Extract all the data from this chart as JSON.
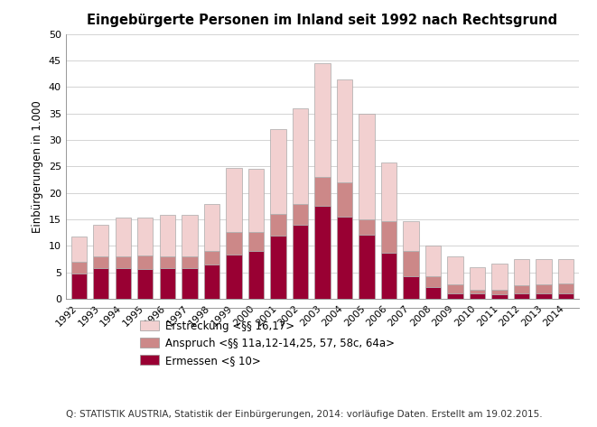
{
  "title": "Eingebürgerte Personen im Inland seit 1992 nach Rechtsgrund",
  "ylabel": "Einbürgerungen in 1.000",
  "years": [
    1992,
    1993,
    1994,
    1995,
    1996,
    1997,
    1998,
    1999,
    2000,
    2001,
    2002,
    2003,
    2004,
    2005,
    2006,
    2007,
    2008,
    2009,
    2010,
    2011,
    2012,
    2013,
    2014
  ],
  "ermessen": [
    4.8,
    5.8,
    5.8,
    5.7,
    5.8,
    5.8,
    6.5,
    8.3,
    9.0,
    12.0,
    14.0,
    17.5,
    15.5,
    12.2,
    8.7,
    4.2,
    2.2,
    1.0,
    1.0,
    0.9,
    1.0,
    1.0,
    1.0
  ],
  "anspruch": [
    2.2,
    2.2,
    2.3,
    2.5,
    2.3,
    2.3,
    2.5,
    4.3,
    3.7,
    4.0,
    4.0,
    5.5,
    6.5,
    2.8,
    6.0,
    4.8,
    2.0,
    1.8,
    0.8,
    0.8,
    1.5,
    1.7,
    2.0
  ],
  "erstreckung": [
    4.8,
    6.0,
    7.2,
    7.1,
    7.7,
    7.7,
    8.9,
    12.2,
    11.8,
    16.0,
    18.0,
    21.5,
    19.5,
    20.0,
    11.0,
    5.7,
    5.8,
    5.3,
    4.2,
    4.9,
    5.0,
    4.8,
    4.5
  ],
  "color_ermessen": "#990033",
  "color_anspruch": "#cc8888",
  "color_erstreckung": "#f2d0d0",
  "ylim": [
    0,
    50
  ],
  "yticks": [
    0,
    5,
    10,
    15,
    20,
    25,
    30,
    35,
    40,
    45,
    50
  ],
  "legend_labels": [
    "Erstreckung <§§ 16,17>",
    "Anspruch <§§ 11a,12-14,25, 57, 58c, 64a>",
    "Ermessen <§ 10>"
  ],
  "footnote": "Q: STATISTIK AUSTRIA, Statistik der Einbürgerungen, 2014: vorläufige Daten. Erstellt am 19.02.2015.",
  "background_color": "#ffffff",
  "bar_edge_color": "#aaaaaa",
  "bar_width": 0.7
}
